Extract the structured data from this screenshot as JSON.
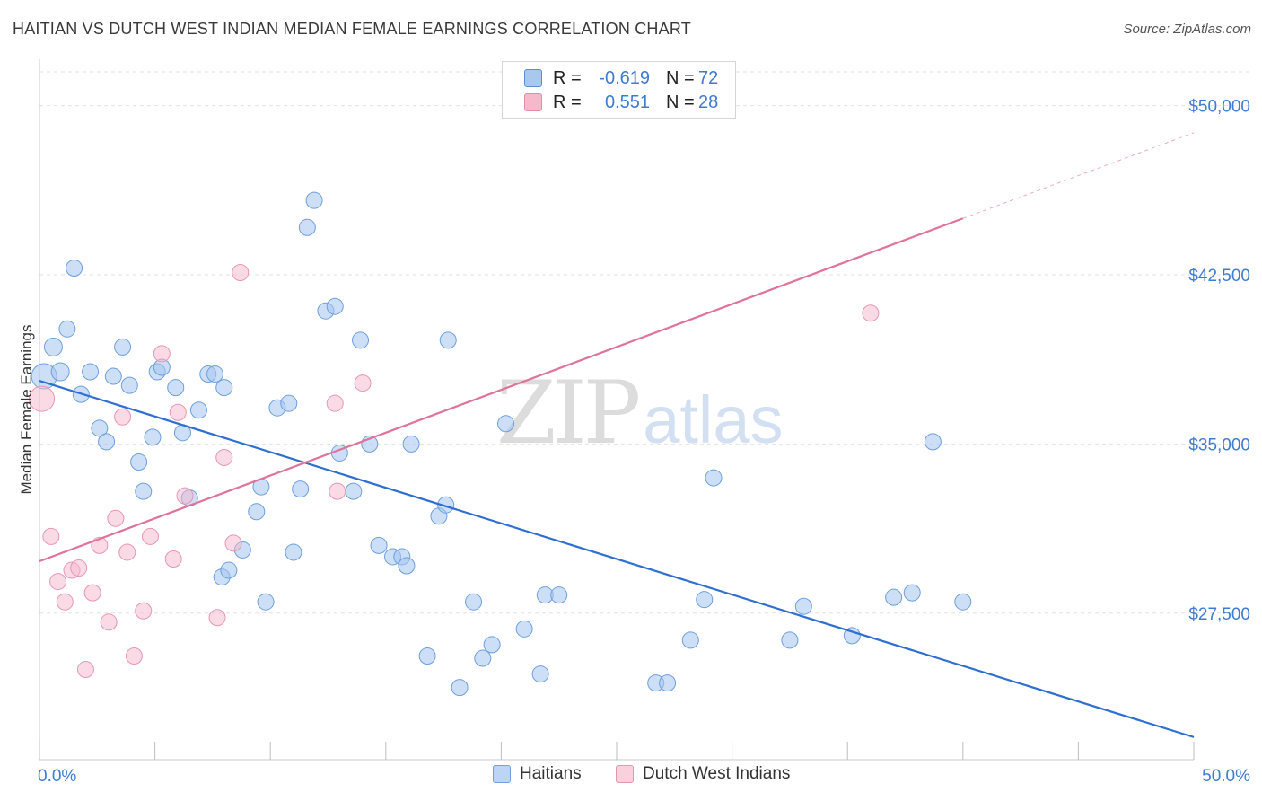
{
  "title": "HAITIAN VS DUTCH WEST INDIAN MEDIAN FEMALE EARNINGS CORRELATION CHART",
  "source": "Source: ZipAtlas.com",
  "watermark": {
    "zip": "ZIP",
    "atlas": "atlas"
  },
  "legend": {
    "rows": [
      {
        "r_label": "R =",
        "r_value": "-0.619",
        "n_label": "N =",
        "n_value": "72",
        "color": "#a8c8f0",
        "border": "#5a8fd6"
      },
      {
        "r_label": "R =",
        "r_value": "0.551",
        "n_label": "N =",
        "n_value": "28",
        "color": "#f6b8cb",
        "border": "#e58aa8"
      }
    ]
  },
  "bottom_legend": [
    {
      "label": "Haitians",
      "color": "#bcd5f4",
      "border": "#6f9fdc"
    },
    {
      "label": "Dutch West Indians",
      "color": "#fad0dd",
      "border": "#e895b0"
    }
  ],
  "colors": {
    "haitian_fill": "rgba(164,197,240,0.55)",
    "haitian_stroke": "#6d9fdd",
    "haitian_line": "#2e6fd1",
    "dutch_fill": "rgba(246,184,203,0.5)",
    "dutch_stroke": "#e996b1",
    "dutch_line": "#e0739a",
    "tick_label": "#3e7bd1",
    "grid": "#e2e2e2"
  },
  "chart_data": {
    "type": "scatter",
    "title": "HAITIAN VS DUTCH WEST INDIAN MEDIAN FEMALE EARNINGS CORRELATION CHART",
    "xlabel": "",
    "ylabel": "Median Female Earnings",
    "xlim": [
      0,
      50
    ],
    "ylim": [
      21000,
      51500
    ],
    "x_tick_labels": [
      {
        "value": 0,
        "label": "0.0%"
      },
      {
        "value": 50,
        "label": "50.0%"
      }
    ],
    "x_minor_ticks": [
      0,
      5,
      10,
      15,
      20,
      25,
      30,
      35,
      40,
      45,
      50
    ],
    "y_ticks": [
      {
        "value": 27500,
        "label": "$27,500"
      },
      {
        "value": 35000,
        "label": "$35,000"
      },
      {
        "value": 42500,
        "label": "$42,500"
      },
      {
        "value": 50000,
        "label": "$50,000"
      }
    ],
    "series": [
      {
        "name": "Haitians",
        "R": -0.619,
        "N": 72,
        "trend": {
          "x0": 0,
          "y0": 37800,
          "x1": 50,
          "y1": 22000
        },
        "points": [
          [
            0.2,
            38000,
            14
          ],
          [
            0.6,
            39300,
            10
          ],
          [
            0.9,
            38200,
            10
          ],
          [
            1.2,
            40100,
            9
          ],
          [
            1.5,
            42800,
            9
          ],
          [
            1.8,
            37200,
            9
          ],
          [
            2.2,
            38200,
            9
          ],
          [
            2.6,
            35700,
            9
          ],
          [
            2.9,
            35100,
            9
          ],
          [
            3.2,
            38000,
            9
          ],
          [
            3.6,
            39300,
            9
          ],
          [
            3.9,
            37600,
            9
          ],
          [
            4.3,
            34200,
            9
          ],
          [
            4.5,
            32900,
            9
          ],
          [
            4.9,
            35300,
            9
          ],
          [
            5.1,
            38200,
            9
          ],
          [
            5.3,
            38400,
            9
          ],
          [
            5.9,
            37500,
            9
          ],
          [
            6.2,
            35500,
            9
          ],
          [
            6.5,
            32600,
            9
          ],
          [
            6.9,
            36500,
            9
          ],
          [
            7.3,
            38100,
            9
          ],
          [
            7.6,
            38100,
            9
          ],
          [
            8.0,
            37500,
            9
          ],
          [
            7.9,
            29100,
            9
          ],
          [
            8.2,
            29400,
            9
          ],
          [
            8.8,
            30300,
            9
          ],
          [
            9.4,
            32000,
            9
          ],
          [
            9.6,
            33100,
            9
          ],
          [
            9.8,
            28000,
            9
          ],
          [
            10.3,
            36600,
            9
          ],
          [
            10.8,
            36800,
            9
          ],
          [
            11.0,
            30200,
            9
          ],
          [
            11.3,
            33000,
            9
          ],
          [
            11.6,
            44600,
            9
          ],
          [
            11.9,
            45800,
            9
          ],
          [
            12.4,
            40900,
            9
          ],
          [
            12.8,
            41100,
            9
          ],
          [
            13.0,
            34600,
            9
          ],
          [
            13.6,
            32900,
            9
          ],
          [
            13.9,
            39600,
            9
          ],
          [
            14.3,
            35000,
            9
          ],
          [
            14.7,
            30500,
            9
          ],
          [
            15.3,
            30000,
            9
          ],
          [
            15.7,
            30000,
            9
          ],
          [
            15.9,
            29600,
            9
          ],
          [
            16.1,
            35000,
            9
          ],
          [
            16.8,
            25600,
            9
          ],
          [
            17.3,
            31800,
            9
          ],
          [
            17.6,
            32300,
            9
          ],
          [
            17.7,
            39600,
            9
          ],
          [
            18.2,
            24200,
            9
          ],
          [
            18.8,
            28000,
            9
          ],
          [
            19.2,
            25500,
            9
          ],
          [
            19.6,
            26100,
            9
          ],
          [
            20.2,
            35900,
            9
          ],
          [
            21.0,
            26800,
            9
          ],
          [
            21.7,
            24800,
            9
          ],
          [
            21.9,
            28300,
            9
          ],
          [
            22.5,
            28300,
            9
          ],
          [
            26.7,
            24400,
            9
          ],
          [
            27.2,
            24400,
            9
          ],
          [
            28.2,
            26300,
            9
          ],
          [
            28.8,
            28100,
            9
          ],
          [
            29.2,
            33500,
            9
          ],
          [
            32.5,
            26300,
            9
          ],
          [
            33.1,
            27800,
            9
          ],
          [
            35.2,
            26500,
            9
          ],
          [
            37.0,
            28200,
            9
          ],
          [
            37.8,
            28400,
            9
          ],
          [
            38.7,
            35100,
            9
          ],
          [
            40.0,
            28000,
            9
          ]
        ]
      },
      {
        "name": "Dutch West Indians",
        "R": 0.551,
        "N": 28,
        "trend": {
          "x0": 0,
          "y0": 29800,
          "x1": 40,
          "y1": 45000,
          "dashed_to_x": 50,
          "dashed_to_y": 48800
        },
        "points": [
          [
            0.1,
            37000,
            14
          ],
          [
            0.5,
            30900,
            9
          ],
          [
            0.8,
            28900,
            9
          ],
          [
            1.1,
            28000,
            9
          ],
          [
            1.4,
            29400,
            9
          ],
          [
            1.7,
            29500,
            9
          ],
          [
            2.0,
            25000,
            9
          ],
          [
            2.3,
            28400,
            9
          ],
          [
            2.6,
            30500,
            9
          ],
          [
            3.0,
            27100,
            9
          ],
          [
            3.3,
            31700,
            9
          ],
          [
            3.8,
            30200,
            9
          ],
          [
            4.1,
            25600,
            9
          ],
          [
            4.5,
            27600,
            9
          ],
          [
            4.8,
            30900,
            9
          ],
          [
            5.3,
            39000,
            9
          ],
          [
            5.8,
            29900,
            9
          ],
          [
            6.0,
            36400,
            9
          ],
          [
            6.3,
            32700,
            9
          ],
          [
            7.7,
            27300,
            9
          ],
          [
            8.0,
            34400,
            9
          ],
          [
            8.4,
            30600,
            9
          ],
          [
            8.7,
            42600,
            9
          ],
          [
            12.8,
            36800,
            9
          ],
          [
            12.9,
            32900,
            9
          ],
          [
            14.0,
            37700,
            9
          ],
          [
            36.0,
            40800,
            9
          ],
          [
            3.6,
            36200,
            9
          ]
        ]
      }
    ]
  }
}
